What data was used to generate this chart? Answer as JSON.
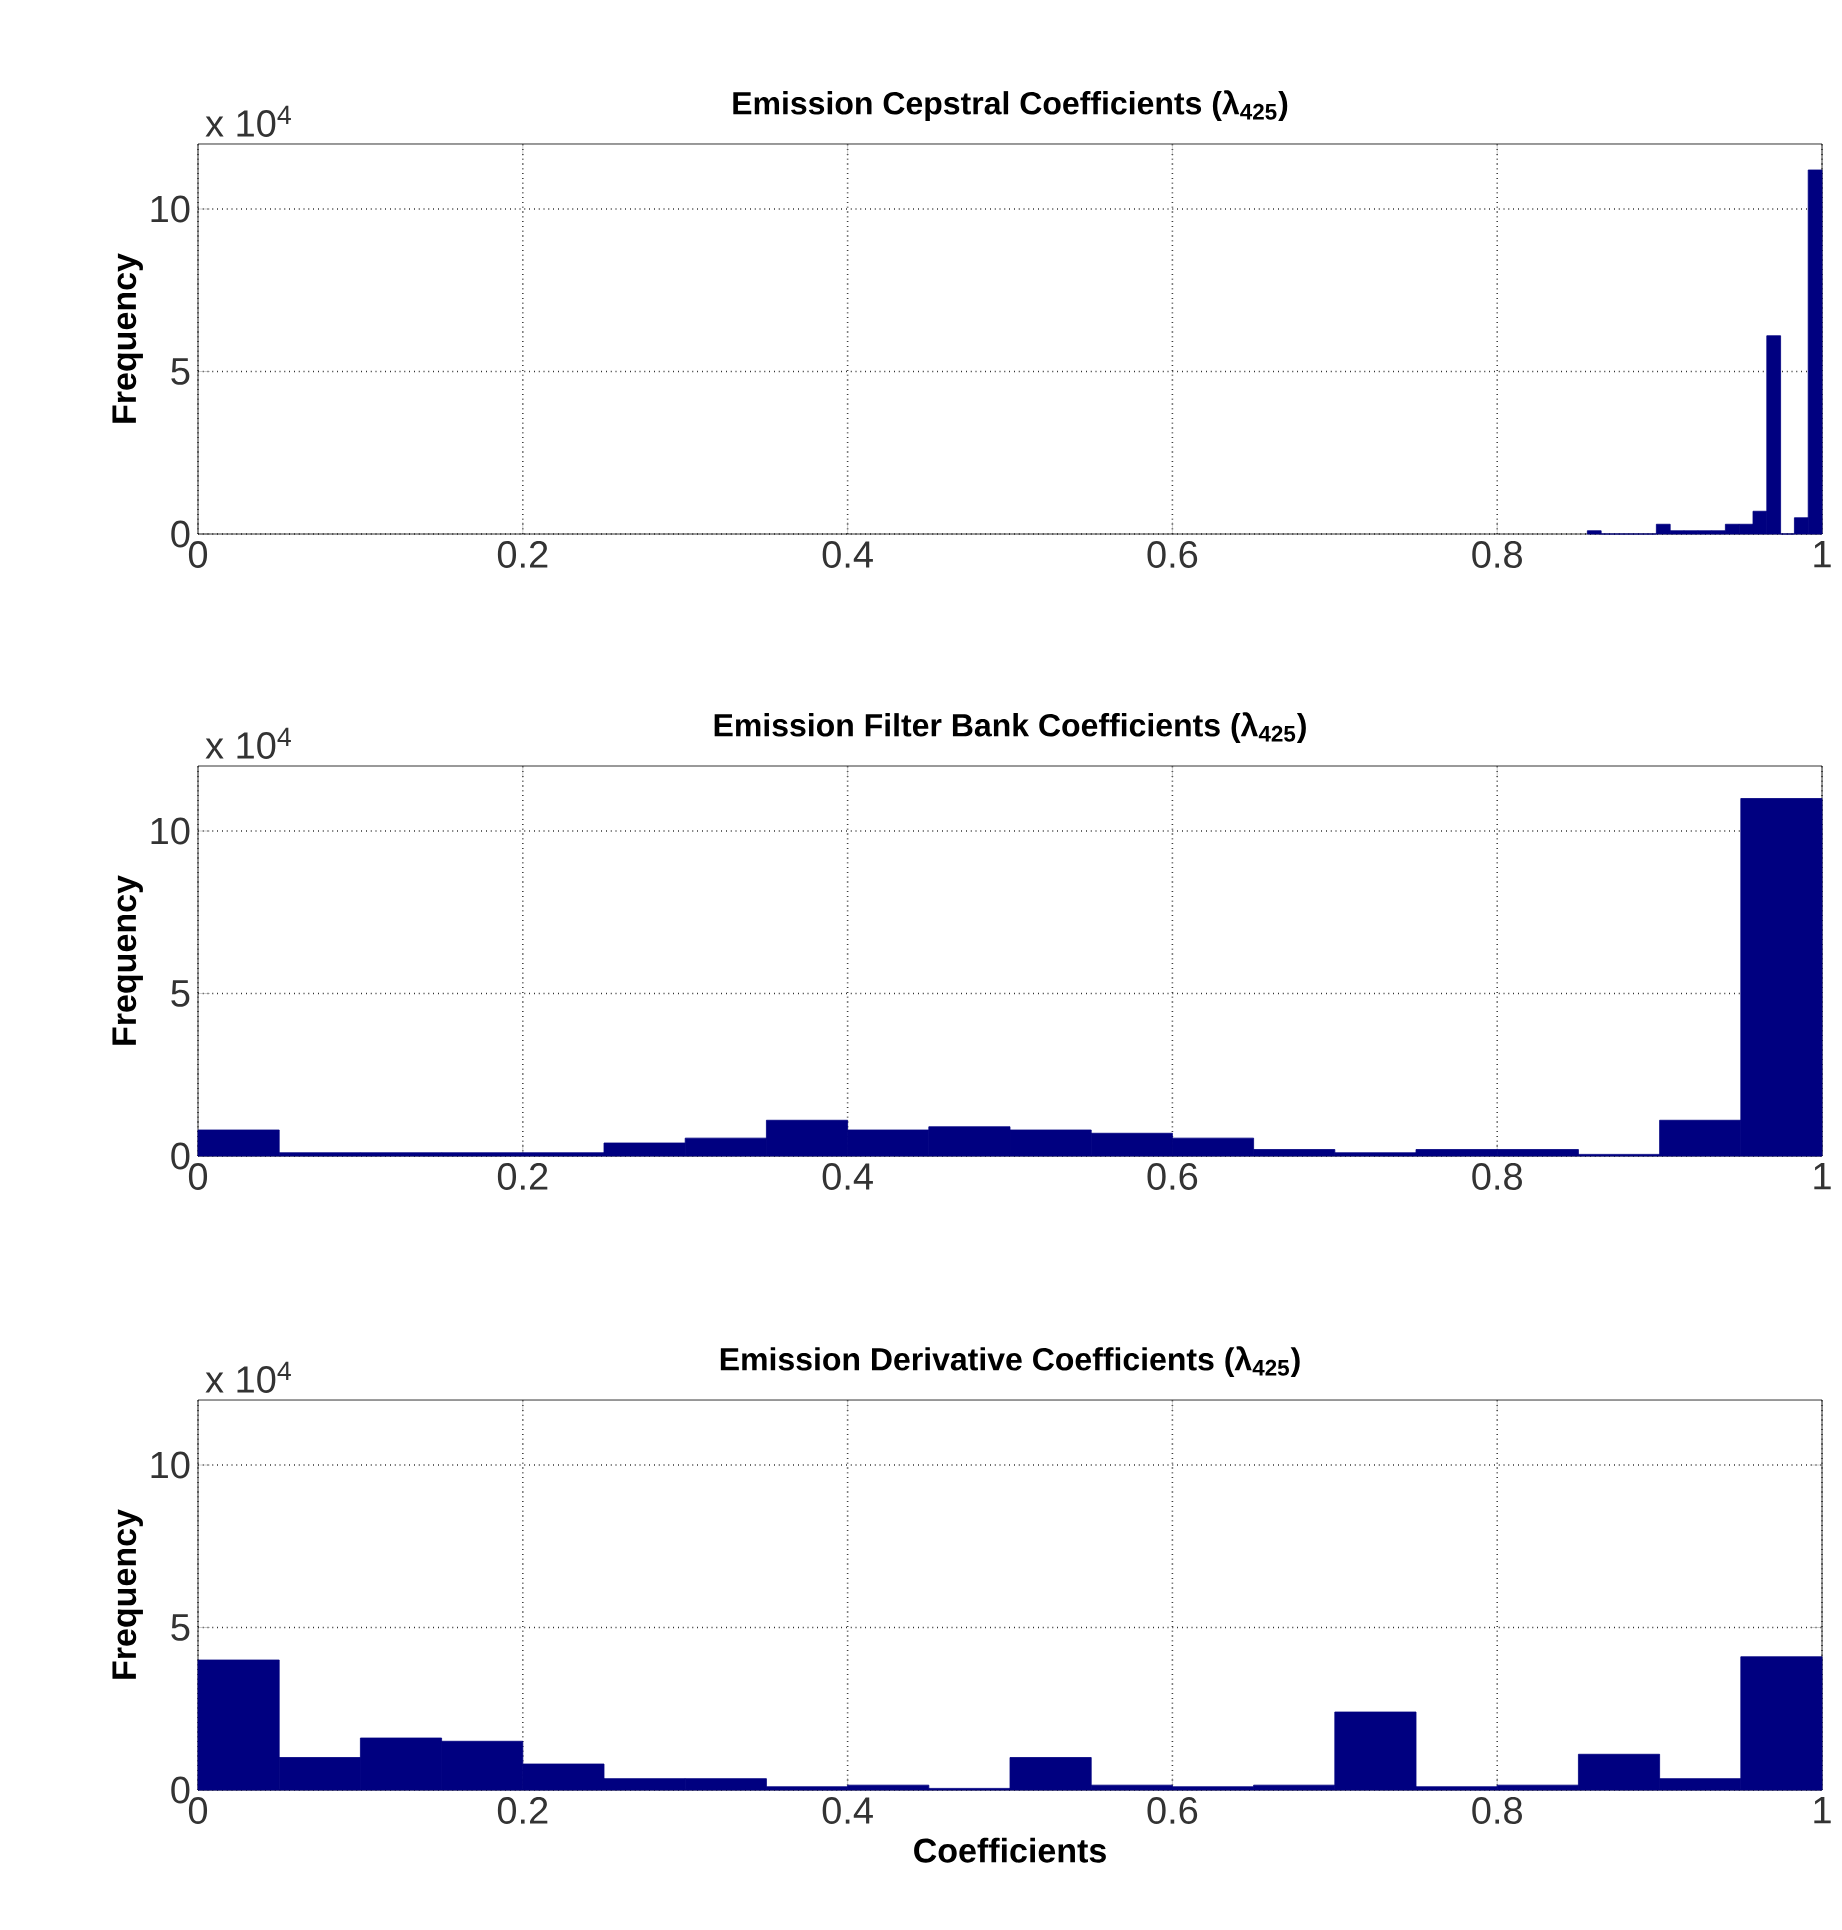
{
  "chart_data": [
    {
      "type": "histogram",
      "title": "Emission Cepstral Coefficients (λ$_{425}$)",
      "ylabel": "Frequency",
      "annotations": [
        "x 10$^{4}$"
      ],
      "color": "#000080",
      "grid": true,
      "bins": [
        0.8555,
        0.864,
        0.8725,
        0.881,
        0.8895,
        0.898,
        0.9065,
        0.915,
        0.9235,
        0.932,
        0.9405,
        0.949,
        0.9575,
        0.966,
        0.9745,
        0.983,
        0.9915,
        1.0
      ],
      "values": [
        0.1,
        0,
        0,
        0,
        0,
        0.3,
        0.1,
        0.1,
        0.1,
        0.1,
        0.3,
        0.3,
        0.7,
        6.1,
        0,
        0.5,
        11.2
      ],
      "xlim": [
        0,
        1
      ],
      "xticks": [
        0,
        0.2,
        0.4,
        0.6,
        0.8,
        1
      ],
      "ylim": [
        0,
        12
      ],
      "yticks": [
        0,
        5,
        10
      ]
    },
    {
      "type": "histogram",
      "title": "Emission Filter Bank Coefficients (λ$_{425}$)",
      "ylabel": "Frequency",
      "annotations": [
        "x 10$^{4}$"
      ],
      "color": "#000080",
      "grid": true,
      "bins": [
        0,
        0.05,
        0.1,
        0.15,
        0.2,
        0.25,
        0.3,
        0.35,
        0.4,
        0.45,
        0.5,
        0.55,
        0.6,
        0.65,
        0.7,
        0.75,
        0.8,
        0.85,
        0.9,
        0.95,
        1.0
      ],
      "values": [
        0.8,
        0.1,
        0.1,
        0.1,
        0.1,
        0.4,
        0.55,
        1.1,
        0.8,
        0.9,
        0.8,
        0.7,
        0.55,
        0.2,
        0.1,
        0.2,
        0.2,
        0.05,
        1.1,
        11.0
      ],
      "xlim": [
        0,
        1
      ],
      "xticks": [
        0,
        0.2,
        0.4,
        0.6,
        0.8,
        1
      ],
      "ylim": [
        0,
        12
      ],
      "yticks": [
        0,
        5,
        10
      ]
    },
    {
      "type": "histogram",
      "title": "Emission Derivative Coefficients (λ$_{425}$)",
      "ylabel": "Frequency",
      "xlabel": "Coefficients",
      "annotations": [
        "x 10$^{4}$"
      ],
      "color": "#000080",
      "grid": true,
      "bins": [
        0,
        0.05,
        0.1,
        0.15,
        0.2,
        0.25,
        0.3,
        0.35,
        0.4,
        0.45,
        0.5,
        0.55,
        0.6,
        0.65,
        0.7,
        0.75,
        0.8,
        0.85,
        0.9,
        0.95,
        1.0
      ],
      "values": [
        4.0,
        1.0,
        1.6,
        1.5,
        0.8,
        0.35,
        0.35,
        0.1,
        0.15,
        0.05,
        1.0,
        0.15,
        0.1,
        0.15,
        2.4,
        0.1,
        0.15,
        1.1,
        0.35,
        4.1
      ],
      "xlim": [
        0,
        1
      ],
      "xticks": [
        0,
        0.2,
        0.4,
        0.6,
        0.8,
        1
      ],
      "ylim": [
        0,
        12
      ],
      "yticks": [
        0,
        5,
        10
      ]
    }
  ]
}
